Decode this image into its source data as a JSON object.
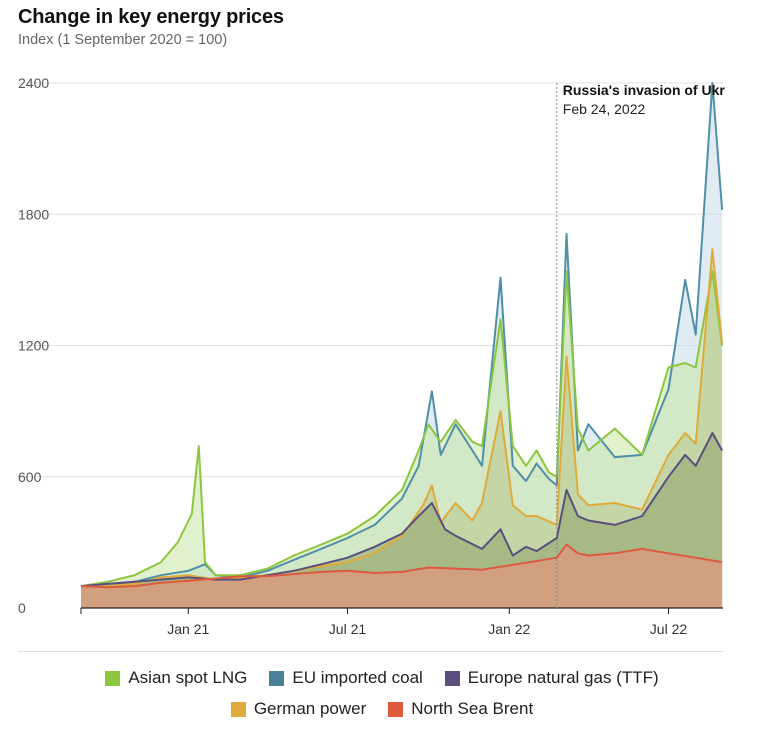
{
  "title": "Change in key energy prices",
  "subtitle": "Index (1 September 2020 = 100)",
  "chart_data": {
    "type": "area",
    "title": "Change in key energy prices",
    "subtitle": "Index (1 September 2020 = 100)",
    "ylim": [
      0,
      2400
    ],
    "yticks": [
      "0",
      "600",
      "1200",
      "1800",
      "2400"
    ],
    "xticks": [
      {
        "label": "Jan 21",
        "date": "2021-01-01"
      },
      {
        "label": "Jul 21",
        "date": "2021-07-01"
      },
      {
        "label": "Jan 22",
        "date": "2022-01-01"
      },
      {
        "label": "Jul 22",
        "date": "2022-07-01"
      }
    ],
    "x_range": [
      "2020-09-01",
      "2022-09-01"
    ],
    "grid": "horizontal",
    "legend_position": "bottom",
    "annotation": {
      "date": "2022-02-24",
      "title": "Russia's invasion of Ukr",
      "subtitle": "Feb 24, 2022"
    },
    "series": [
      {
        "name": "Asian spot LNG",
        "color": "#8cc63f",
        "fill": "#c9e5a4",
        "points": [
          [
            "2020-09-01",
            100
          ],
          [
            "2020-10-01",
            120
          ],
          [
            "2020-11-01",
            150
          ],
          [
            "2020-12-01",
            210
          ],
          [
            "2020-12-20",
            300
          ],
          [
            "2021-01-05",
            430
          ],
          [
            "2021-01-13",
            740
          ],
          [
            "2021-01-20",
            210
          ],
          [
            "2021-02-01",
            150
          ],
          [
            "2021-03-01",
            150
          ],
          [
            "2021-04-01",
            180
          ],
          [
            "2021-05-01",
            240
          ],
          [
            "2021-06-01",
            290
          ],
          [
            "2021-07-01",
            340
          ],
          [
            "2021-08-01",
            420
          ],
          [
            "2021-09-01",
            540
          ],
          [
            "2021-09-20",
            720
          ],
          [
            "2021-10-01",
            840
          ],
          [
            "2021-10-15",
            760
          ],
          [
            "2021-11-01",
            860
          ],
          [
            "2021-11-20",
            760
          ],
          [
            "2021-12-01",
            740
          ],
          [
            "2021-12-22",
            1320
          ],
          [
            "2022-01-05",
            740
          ],
          [
            "2022-01-20",
            650
          ],
          [
            "2022-02-01",
            720
          ],
          [
            "2022-02-15",
            620
          ],
          [
            "2022-02-24",
            600
          ],
          [
            "2022-03-07",
            1540
          ],
          [
            "2022-03-20",
            820
          ],
          [
            "2022-04-01",
            720
          ],
          [
            "2022-05-01",
            820
          ],
          [
            "2022-06-01",
            700
          ],
          [
            "2022-07-01",
            1100
          ],
          [
            "2022-07-20",
            1120
          ],
          [
            "2022-08-01",
            1100
          ],
          [
            "2022-08-20",
            1540
          ],
          [
            "2022-08-31",
            1200
          ]
        ]
      },
      {
        "name": "EU imported coal",
        "color": "#4f8fa8",
        "fill": "#c6dde8",
        "points": [
          [
            "2020-09-01",
            100
          ],
          [
            "2020-10-01",
            110
          ],
          [
            "2020-11-01",
            120
          ],
          [
            "2020-12-01",
            150
          ],
          [
            "2021-01-01",
            170
          ],
          [
            "2021-01-20",
            200
          ],
          [
            "2021-02-01",
            150
          ],
          [
            "2021-03-01",
            140
          ],
          [
            "2021-04-01",
            170
          ],
          [
            "2021-05-01",
            220
          ],
          [
            "2021-06-01",
            270
          ],
          [
            "2021-07-01",
            320
          ],
          [
            "2021-08-01",
            380
          ],
          [
            "2021-09-01",
            500
          ],
          [
            "2021-09-20",
            650
          ],
          [
            "2021-10-05",
            990
          ],
          [
            "2021-10-15",
            700
          ],
          [
            "2021-11-01",
            840
          ],
          [
            "2021-11-20",
            720
          ],
          [
            "2021-12-01",
            650
          ],
          [
            "2021-12-22",
            1510
          ],
          [
            "2022-01-05",
            650
          ],
          [
            "2022-01-20",
            580
          ],
          [
            "2022-02-01",
            660
          ],
          [
            "2022-02-15",
            590
          ],
          [
            "2022-02-24",
            560
          ],
          [
            "2022-03-07",
            1710
          ],
          [
            "2022-03-20",
            720
          ],
          [
            "2022-04-01",
            840
          ],
          [
            "2022-05-01",
            690
          ],
          [
            "2022-06-01",
            700
          ],
          [
            "2022-07-01",
            1000
          ],
          [
            "2022-07-20",
            1500
          ],
          [
            "2022-08-01",
            1250
          ],
          [
            "2022-08-20",
            2400
          ],
          [
            "2022-08-31",
            1820
          ]
        ]
      },
      {
        "name": "Europe natural gas (TTF)",
        "color": "#5a4f7d",
        "fill": "#8ea46a",
        "points": [
          [
            "2020-09-01",
            100
          ],
          [
            "2020-10-01",
            110
          ],
          [
            "2020-11-01",
            120
          ],
          [
            "2020-12-01",
            130
          ],
          [
            "2021-01-01",
            140
          ],
          [
            "2021-02-01",
            130
          ],
          [
            "2021-03-01",
            130
          ],
          [
            "2021-04-01",
            150
          ],
          [
            "2021-05-01",
            170
          ],
          [
            "2021-06-01",
            200
          ],
          [
            "2021-07-01",
            230
          ],
          [
            "2021-08-01",
            280
          ],
          [
            "2021-09-01",
            340
          ],
          [
            "2021-09-20",
            420
          ],
          [
            "2021-10-05",
            480
          ],
          [
            "2021-10-20",
            360
          ],
          [
            "2021-11-01",
            330
          ],
          [
            "2021-12-01",
            270
          ],
          [
            "2021-12-22",
            360
          ],
          [
            "2022-01-05",
            240
          ],
          [
            "2022-01-20",
            280
          ],
          [
            "2022-02-01",
            260
          ],
          [
            "2022-02-24",
            320
          ],
          [
            "2022-03-07",
            540
          ],
          [
            "2022-03-20",
            420
          ],
          [
            "2022-04-01",
            400
          ],
          [
            "2022-05-01",
            380
          ],
          [
            "2022-06-01",
            420
          ],
          [
            "2022-07-01",
            600
          ],
          [
            "2022-07-20",
            700
          ],
          [
            "2022-08-01",
            650
          ],
          [
            "2022-08-20",
            800
          ],
          [
            "2022-08-31",
            720
          ]
        ]
      },
      {
        "name": "German power",
        "color": "#e0aa3a",
        "fill": "#b9c78a",
        "points": [
          [
            "2020-09-01",
            100
          ],
          [
            "2020-10-01",
            100
          ],
          [
            "2020-11-01",
            110
          ],
          [
            "2020-12-01",
            140
          ],
          [
            "2021-01-01",
            150
          ],
          [
            "2021-02-01",
            130
          ],
          [
            "2021-03-01",
            140
          ],
          [
            "2021-04-01",
            150
          ],
          [
            "2021-05-01",
            170
          ],
          [
            "2021-06-01",
            190
          ],
          [
            "2021-07-01",
            210
          ],
          [
            "2021-08-01",
            250
          ],
          [
            "2021-09-01",
            330
          ],
          [
            "2021-09-25",
            470
          ],
          [
            "2021-10-05",
            560
          ],
          [
            "2021-10-15",
            390
          ],
          [
            "2021-11-01",
            480
          ],
          [
            "2021-11-20",
            400
          ],
          [
            "2021-12-01",
            480
          ],
          [
            "2021-12-22",
            900
          ],
          [
            "2022-01-05",
            470
          ],
          [
            "2022-01-20",
            420
          ],
          [
            "2022-02-01",
            420
          ],
          [
            "2022-02-24",
            380
          ],
          [
            "2022-03-07",
            1150
          ],
          [
            "2022-03-20",
            520
          ],
          [
            "2022-04-01",
            470
          ],
          [
            "2022-05-01",
            480
          ],
          [
            "2022-06-01",
            450
          ],
          [
            "2022-07-01",
            700
          ],
          [
            "2022-07-20",
            800
          ],
          [
            "2022-08-01",
            750
          ],
          [
            "2022-08-20",
            1640
          ],
          [
            "2022-08-31",
            1210
          ]
        ]
      },
      {
        "name": "North Sea Brent",
        "color": "#dd5a3d",
        "fill": "#d3a07f",
        "points": [
          [
            "2020-09-01",
            100
          ],
          [
            "2020-10-01",
            95
          ],
          [
            "2020-11-01",
            100
          ],
          [
            "2020-12-01",
            115
          ],
          [
            "2021-01-01",
            125
          ],
          [
            "2021-02-01",
            135
          ],
          [
            "2021-03-01",
            145
          ],
          [
            "2021-04-01",
            145
          ],
          [
            "2021-05-01",
            155
          ],
          [
            "2021-06-01",
            165
          ],
          [
            "2021-07-01",
            170
          ],
          [
            "2021-08-01",
            160
          ],
          [
            "2021-09-01",
            165
          ],
          [
            "2021-10-01",
            185
          ],
          [
            "2021-11-01",
            180
          ],
          [
            "2021-12-01",
            175
          ],
          [
            "2022-01-01",
            195
          ],
          [
            "2022-02-01",
            215
          ],
          [
            "2022-02-24",
            230
          ],
          [
            "2022-03-07",
            290
          ],
          [
            "2022-03-20",
            250
          ],
          [
            "2022-04-01",
            240
          ],
          [
            "2022-05-01",
            250
          ],
          [
            "2022-06-01",
            270
          ],
          [
            "2022-07-01",
            250
          ],
          [
            "2022-08-01",
            230
          ],
          [
            "2022-08-31",
            210
          ]
        ]
      }
    ]
  },
  "legend": {
    "row1": [
      {
        "label": "Asian spot LNG",
        "color": "#8cc63f"
      },
      {
        "label": "EU imported coal",
        "color": "#4a8196"
      },
      {
        "label": "Europe natural gas (TTF)",
        "color": "#5a4f7d"
      }
    ],
    "row2": [
      {
        "label": "German power",
        "color": "#e0aa3a"
      },
      {
        "label": "North Sea Brent",
        "color": "#dd5a3d"
      }
    ]
  }
}
